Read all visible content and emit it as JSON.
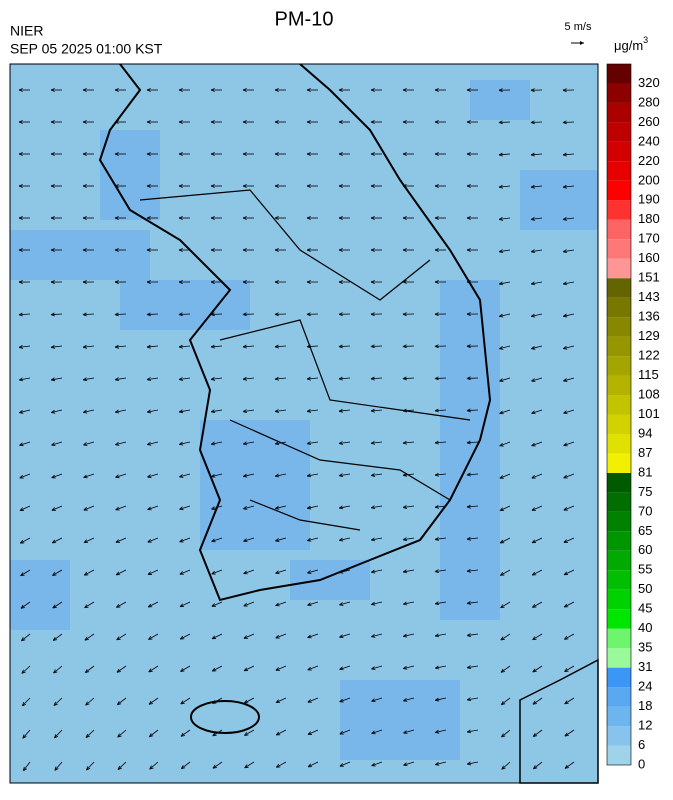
{
  "header": {
    "title": "PM-10",
    "agency": "NIER",
    "timestamp": "SEP 05 2025 01:00 KST",
    "vector_scale": "5 m/s",
    "unit": "μg/m",
    "unit_superscript": "3"
  },
  "colorbar": {
    "levels": [
      0,
      6,
      12,
      18,
      24,
      31,
      35,
      40,
      45,
      50,
      55,
      60,
      65,
      70,
      75,
      81,
      87,
      94,
      101,
      108,
      115,
      122,
      129,
      136,
      143,
      151,
      160,
      170,
      180,
      190,
      200,
      220,
      240,
      260,
      280,
      320
    ],
    "colors": [
      "#9fd3ea",
      "#87c3ec",
      "#6db5ee",
      "#5aa8f0",
      "#3c96f5",
      "#9afa9a",
      "#6ef56e",
      "#00e600",
      "#00d200",
      "#00be00",
      "#00aa00",
      "#009600",
      "#008200",
      "#006e00",
      "#005a00",
      "#f0f000",
      "#e1e100",
      "#d2d200",
      "#c3c300",
      "#b4b400",
      "#a5a500",
      "#969600",
      "#878700",
      "#787800",
      "#646400",
      "#ff9696",
      "#ff7878",
      "#ff6464",
      "#ff3232",
      "#ff0000",
      "#e60000",
      "#d20000",
      "#be0000",
      "#aa0000",
      "#8c0000",
      "#640000"
    ]
  }
}
